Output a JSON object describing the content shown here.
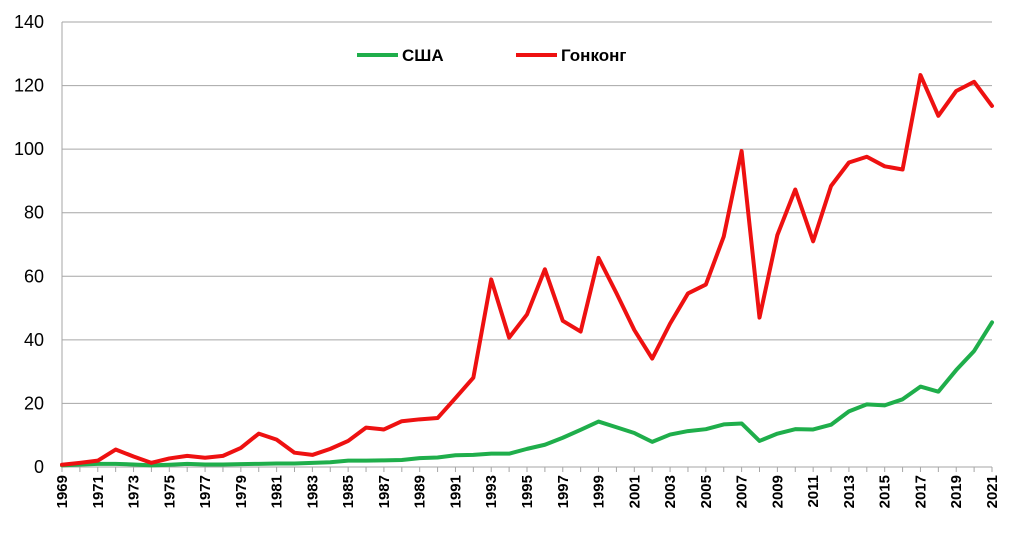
{
  "chart_data": {
    "type": "line",
    "title": "",
    "xlabel": "",
    "ylabel": "",
    "x": [
      1969,
      1970,
      1971,
      1972,
      1973,
      1974,
      1975,
      1976,
      1977,
      1978,
      1979,
      1980,
      1981,
      1982,
      1983,
      1984,
      1985,
      1986,
      1987,
      1988,
      1989,
      1990,
      1991,
      1992,
      1993,
      1994,
      1995,
      1996,
      1997,
      1998,
      1999,
      2000,
      2001,
      2002,
      2003,
      2004,
      2005,
      2006,
      2007,
      2008,
      2009,
      2010,
      2011,
      2012,
      2013,
      2014,
      2015,
      2016,
      2017,
      2018,
      2019,
      2020,
      2021
    ],
    "x_tick_labels": [
      "1969",
      "1971",
      "1973",
      "1975",
      "1977",
      "1979",
      "1981",
      "1983",
      "1985",
      "1987",
      "1989",
      "1991",
      "1993",
      "1995",
      "1997",
      "1999",
      "2001",
      "2003",
      "2005",
      "2007",
      "2009",
      "2011",
      "2013",
      "2015",
      "2017",
      "2019",
      "2021"
    ],
    "ylim": [
      0,
      140
    ],
    "y_ticks": [
      0,
      20,
      40,
      60,
      80,
      100,
      120,
      140
    ],
    "grid": true,
    "legend_position": "top-center",
    "series": [
      {
        "name": "США",
        "color": "#1fae4b",
        "values": [
          0.5,
          0.8,
          1,
          1,
          0.8,
          0.5,
          0.7,
          1,
          0.8,
          0.8,
          0.9,
          1,
          1.1,
          1.1,
          1.3,
          1.5,
          2,
          2,
          2.1,
          2.2,
          2.8,
          3,
          3.7,
          3.8,
          4.2,
          4.2,
          5.7,
          7,
          9.2,
          11.7,
          14.3,
          12.5,
          10.7,
          7.9,
          10.2,
          11.3,
          11.9,
          13.4,
          13.7,
          8.2,
          10.5,
          11.9,
          11.8,
          13.3,
          17.5,
          19.7,
          19.4,
          21.3,
          25.3,
          23.7,
          30.5,
          36.5,
          45.5
        ]
      },
      {
        "name": "Гонконг",
        "color": "#ee1111",
        "values": [
          0.7,
          1.3,
          2,
          5.5,
          3.3,
          1.3,
          2.7,
          3.5,
          2.9,
          3.5,
          6,
          10.5,
          8.6,
          4.5,
          3.8,
          5.7,
          8.2,
          12.4,
          11.8,
          14.4,
          15,
          15.4,
          21.7,
          28.1,
          59,
          40.7,
          48,
          62.2,
          46,
          42.6,
          65.8,
          54.7,
          43.1,
          34.1,
          45.1,
          54.6,
          57.4,
          72.5,
          99.4,
          47,
          73,
          87.3,
          71,
          88.4,
          95.8,
          97.6,
          94.6,
          93.6,
          123.3,
          110.5,
          118.3,
          121.2,
          113.6
        ]
      }
    ]
  }
}
